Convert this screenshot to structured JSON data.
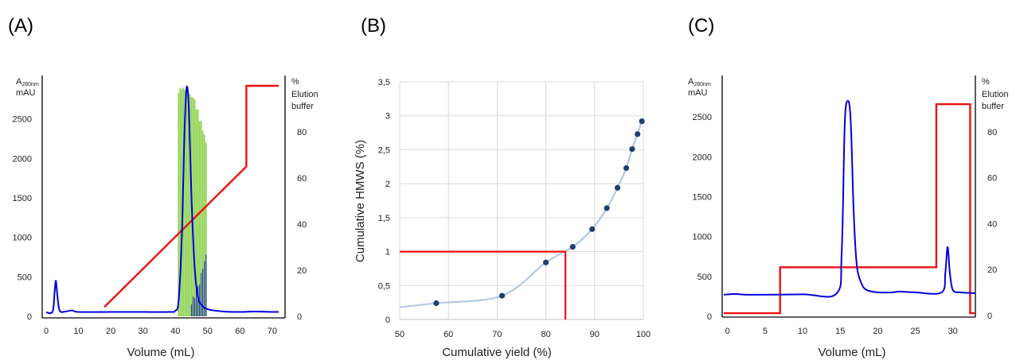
{
  "chart_data": [
    {
      "panel_label": "(A)",
      "type": "line",
      "xlabel": "Volume (mL)",
      "ylabel_left": [
        "A",
        "280nm",
        "mAU"
      ],
      "ylabel_right": [
        "%",
        "Elution",
        "buffer"
      ],
      "xlim": [
        0,
        72
      ],
      "ylim_left": [
        0,
        3000
      ],
      "ylim_right": [
        0,
        100
      ],
      "xticks": [
        "0",
        "10",
        "20",
        "30",
        "40",
        "50",
        "60",
        "70"
      ],
      "yticks_left": [
        "0",
        "500",
        "1000",
        "1500",
        "2000",
        "2500"
      ],
      "yticks_right": [
        "0",
        "20",
        "40",
        "60",
        "80"
      ],
      "absorbance": {
        "color": "#0000dd",
        "x": [
          0,
          2,
          2.6,
          3.0,
          3.5,
          4.2,
          6,
          8,
          10,
          20,
          30,
          38,
          40,
          41,
          42,
          42.8,
          43.5,
          44.2,
          45,
          46,
          47,
          48,
          50,
          55,
          60,
          65,
          70,
          72
        ],
        "y": [
          50,
          60,
          300,
          450,
          250,
          70,
          60,
          75,
          55,
          55,
          55,
          55,
          70,
          200,
          1000,
          2300,
          2900,
          2600,
          1500,
          600,
          250,
          150,
          90,
          60,
          55,
          60,
          55,
          55
        ]
      },
      "gradient": {
        "color": "#ee1111",
        "x": [
          18,
          62,
          62,
          72
        ],
        "y": [
          4,
          65,
          100,
          100
        ]
      },
      "fractions_green": {
        "color": "#8fd14f",
        "x": [
          41,
          41.5,
          42,
          42.5,
          43,
          43.5,
          44,
          44.5,
          45,
          45.5,
          46,
          46.5,
          47,
          47.5,
          48,
          48.5,
          49,
          49.5
        ],
        "y": [
          2830,
          2890,
          2880,
          2900,
          2870,
          2850,
          2880,
          2820,
          2780,
          2770,
          2750,
          2620,
          2620,
          2470,
          2480,
          2350,
          2300,
          2200
        ]
      },
      "fractions_blue": {
        "color": "#1f3f8f",
        "x": [
          45,
          45.5,
          46,
          46.5,
          47,
          47.5,
          48,
          48.5,
          49,
          49.5
        ],
        "y": [
          150,
          250,
          230,
          350,
          380,
          400,
          550,
          600,
          700,
          780
        ]
      }
    },
    {
      "panel_label": "(B)",
      "type": "scatter",
      "xlabel": "Cumulative yield (%)",
      "ylabel": "Cumulative HMWS (%)",
      "xlim": [
        50,
        100
      ],
      "ylim": [
        0,
        3.5
      ],
      "xticks": [
        "50",
        "60",
        "70",
        "80",
        "90",
        "100"
      ],
      "yticks": [
        "0",
        "0,5",
        "1",
        "1,5",
        "2",
        "2,5",
        "3",
        "3,5"
      ],
      "grid": true,
      "points": {
        "color": "#1f3f6f",
        "x": [
          57.5,
          71,
          80,
          85.5,
          89.5,
          92.5,
          94.7,
          96.5,
          97.7,
          98.8,
          99.7
        ],
        "y": [
          0.24,
          0.35,
          0.84,
          1.07,
          1.33,
          1.64,
          1.94,
          2.23,
          2.51,
          2.73,
          2.92
        ]
      },
      "trend": {
        "color": "#b4c7e7",
        "x": [
          50,
          57.5,
          71,
          80,
          85.5,
          89.5,
          92.5,
          94.7,
          96.5,
          97.7,
          98.8,
          99.7
        ],
        "y": [
          0.18,
          0.24,
          0.35,
          0.84,
          1.07,
          1.33,
          1.64,
          1.94,
          2.23,
          2.51,
          2.73,
          2.92
        ]
      },
      "cutoff": {
        "color": "#ee1111",
        "x": [
          50,
          84,
          84
        ],
        "y": [
          1.0,
          1.0,
          0
        ]
      }
    },
    {
      "panel_label": "(C)",
      "type": "line",
      "xlabel": "Volume (mL)",
      "ylabel_left": [
        "A",
        "280nm",
        "mAU"
      ],
      "ylabel_right": [
        "%",
        "Elution",
        "buffer"
      ],
      "xlim": [
        -0.5,
        33
      ],
      "ylim_left": [
        0,
        2900
      ],
      "ylim_right": [
        0,
        100
      ],
      "xticks": [
        "0",
        "5",
        "10",
        "15",
        "20",
        "25",
        "30"
      ],
      "yticks_left": [
        "0",
        "500",
        "1000",
        "1500",
        "2000",
        "2500"
      ],
      "yticks_right": [
        "0",
        "20",
        "40",
        "60",
        "80"
      ],
      "absorbance": {
        "color": "#0000dd",
        "x": [
          -0.5,
          1,
          3,
          10,
          14.5,
          15.2,
          15.6,
          16.0,
          16.4,
          16.8,
          17.2,
          17.8,
          18.5,
          20,
          22,
          22.8,
          25,
          28.5,
          29.0,
          29.3,
          29.6,
          30.0,
          31,
          33
        ],
        "y": [
          270,
          280,
          270,
          275,
          285,
          800,
          2400,
          2700,
          2450,
          1300,
          650,
          420,
          330,
          300,
          300,
          310,
          300,
          300,
          550,
          870,
          550,
          330,
          300,
          290
        ]
      },
      "gradient": {
        "color": "#ee1111",
        "x": [
          -0.5,
          7,
          7,
          27.8,
          27.8,
          32.3,
          32.3,
          33
        ],
        "y": [
          1,
          1,
          21,
          21,
          92,
          92,
          1,
          1
        ]
      }
    }
  ]
}
